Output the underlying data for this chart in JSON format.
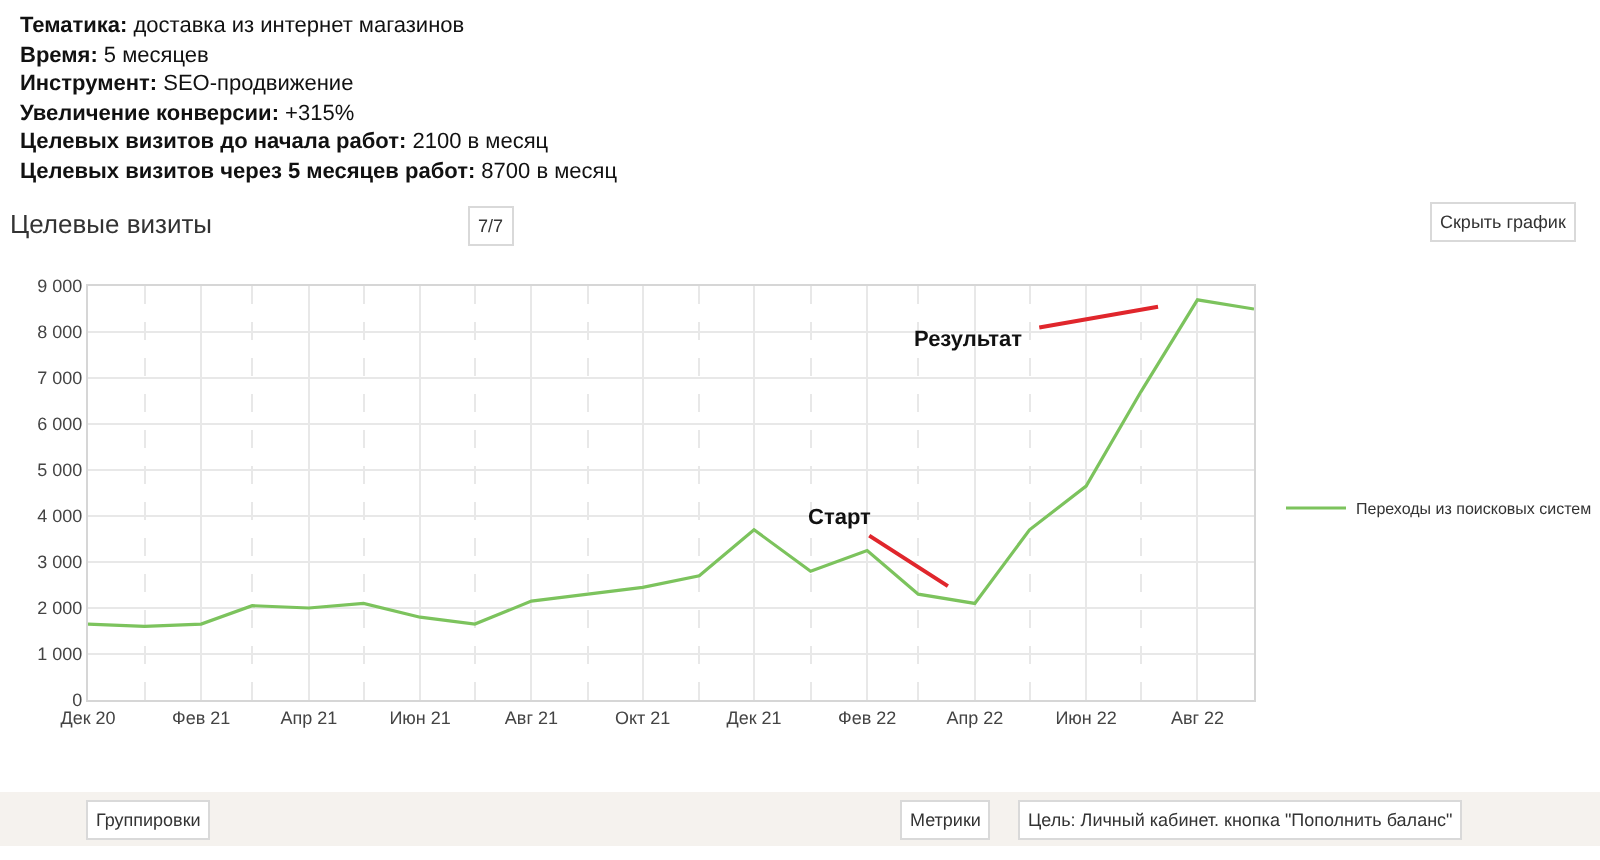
{
  "chart_data": {
    "type": "line",
    "title": "Целевые визиты",
    "subtitle": "Тематика: доставка из интернет магазинов\nВремя: 5 месяцев\nИнструмент: SEO-продвижение\nУвеличение конверсии: +315%\nЦелевых визитов до начала работ: 2100 в месяц\nЦелевых визитов через 5 месяцев работ: 8700 в месяц",
    "x": [
      "2020-12",
      "2021-01",
      "2021-02",
      "2021-03",
      "2021-04",
      "2021-05",
      "2021-06",
      "2021-07",
      "2021-08",
      "2021-09",
      "2021-10",
      "2021-11",
      "2021-12",
      "2022-01",
      "2022-02",
      "2022-03",
      "2022-04",
      "2022-05",
      "2022-06",
      "2022-07",
      "2022-08",
      "2022-09"
    ],
    "series": [
      {
        "name": "Переходы из поисковых систем",
        "color": "#7cc35d",
        "values": [
          1650,
          1600,
          1650,
          2050,
          2000,
          2100,
          1800,
          1650,
          2150,
          2300,
          2450,
          2700,
          3700,
          2800,
          3250,
          2300,
          2100,
          3700,
          4650,
          6700,
          8700,
          8500
        ]
      }
    ],
    "xlim": [
      "2020-12",
      "2022-09"
    ],
    "xticks": [
      {
        "value": "2020-12",
        "label": "Дек 20"
      },
      {
        "value": "2021-01",
        "label": null
      },
      {
        "value": "2021-02",
        "label": "Фев 21"
      },
      {
        "value": "2021-03",
        "label": null
      },
      {
        "value": "2021-04",
        "label": "Апр 21"
      },
      {
        "value": "2021-05",
        "label": null
      },
      {
        "value": "2021-06",
        "label": "Июн 21"
      },
      {
        "value": "2021-07",
        "label": null
      },
      {
        "value": "2021-08",
        "label": "Авг 21"
      },
      {
        "value": "2021-09",
        "label": null
      },
      {
        "value": "2021-10",
        "label": "Окт 21"
      },
      {
        "value": "2021-11",
        "label": null
      },
      {
        "value": "2021-12",
        "label": "Дек 21"
      },
      {
        "value": "2022-01",
        "label": null
      },
      {
        "value": "2022-02",
        "label": "Фев 22"
      },
      {
        "value": "2022-03",
        "label": null
      },
      {
        "value": "2022-04",
        "label": "Апр 22"
      },
      {
        "value": "2022-05",
        "label": null
      },
      {
        "value": "2022-06",
        "label": "Июн 22"
      },
      {
        "value": "2022-07",
        "label": null
      },
      {
        "value": "2022-08",
        "label": "Авг 22"
      }
    ],
    "ylim": [
      0,
      9000
    ],
    "yticks": [
      0,
      {
        "value": 1000,
        "label": "1 000"
      },
      {
        "value": 2000,
        "label": "2 000"
      },
      {
        "value": 3000,
        "label": "3 000"
      },
      {
        "value": 4000,
        "label": "4 000"
      },
      {
        "value": 5000,
        "label": "5 000"
      },
      {
        "value": 6000,
        "label": "6 000"
      },
      {
        "value": 7000,
        "label": "7 000"
      },
      {
        "value": 8000,
        "label": "8 000"
      },
      {
        "value": 9000,
        "label": "9 000"
      }
    ],
    "grid": true,
    "legend": "right",
    "annotations": [
      {
        "text": "Старт",
        "x": "2022-04",
        "y": 2100
      },
      {
        "text": "Результат",
        "x": "2022-08",
        "y": 8700
      },
      "7/7",
      "Скрыть график",
      "Группировки",
      "Метрики",
      "Цель: Личный кабинет. кнопка \"Пополнить баланс\""
    ]
  }
}
